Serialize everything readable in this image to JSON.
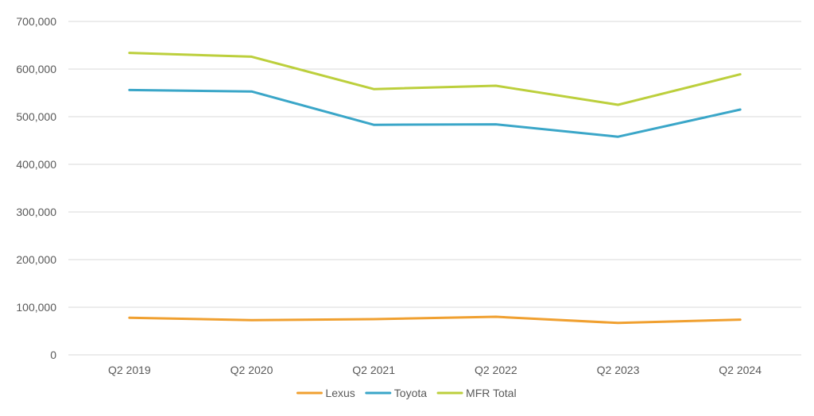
{
  "chart_data": {
    "type": "line",
    "categories": [
      "Q2 2019",
      "Q2 2020",
      "Q2 2021",
      "Q2 2022",
      "Q2 2023",
      "Q2 2024"
    ],
    "series": [
      {
        "name": "Lexus",
        "color": "#f0a030",
        "values": [
          78000,
          73000,
          75000,
          80000,
          67000,
          74000
        ]
      },
      {
        "name": "Toyota",
        "color": "#3aa6c8",
        "values": [
          556000,
          553000,
          483000,
          484000,
          458000,
          515000
        ]
      },
      {
        "name": "MFR Total",
        "color": "#bccf3c",
        "values": [
          634000,
          626000,
          558000,
          565000,
          525000,
          589000
        ]
      }
    ],
    "ylim": [
      0,
      700000
    ],
    "yticks": [
      0,
      100000,
      200000,
      300000,
      400000,
      500000,
      600000,
      700000
    ],
    "ytick_labels": [
      "0",
      "100,000",
      "200,000",
      "300,000",
      "400,000",
      "500,000",
      "600,000",
      "700,000"
    ],
    "grid": true,
    "legend_position": "bottom",
    "xlabel": "",
    "ylabel": "",
    "title": ""
  }
}
